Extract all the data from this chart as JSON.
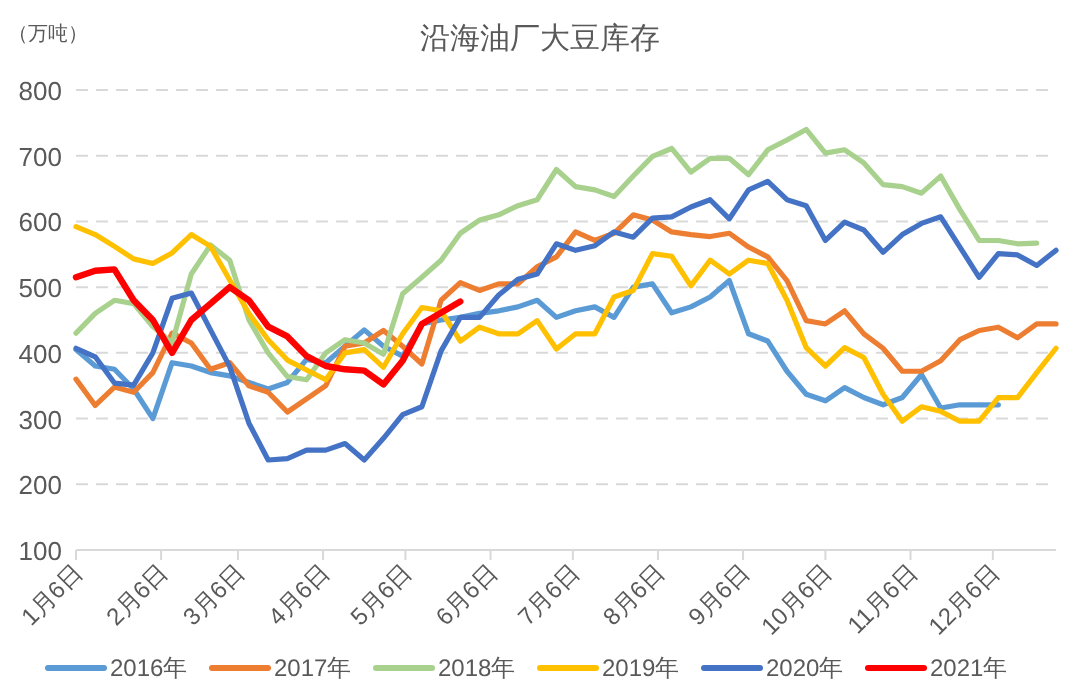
{
  "chart_data": {
    "type": "line",
    "title": "沿海油厂大豆库存",
    "ylabel": "（万吨）",
    "x": [
      "--01-06",
      "--01-13",
      "--01-20",
      "--01-27",
      "--02-03",
      "--02-10",
      "--02-17",
      "--02-24",
      "--03-03",
      "--03-10",
      "--03-17",
      "--03-24",
      "--03-31",
      "--04-07",
      "--04-14",
      "--04-21",
      "--04-28",
      "--05-05",
      "--05-12",
      "--05-19",
      "--05-26",
      "--06-02",
      "--06-09",
      "--06-16",
      "--06-23",
      "--06-30",
      "--07-07",
      "--07-14",
      "--07-21",
      "--07-28",
      "--08-04",
      "--08-11",
      "--08-18",
      "--08-25",
      "--09-01",
      "--09-08",
      "--09-15",
      "--09-22",
      "--09-29",
      "--10-06",
      "--10-13",
      "--10-20",
      "--10-27",
      "--11-03",
      "--11-10",
      "--11-17",
      "--11-24",
      "--12-01",
      "--12-08",
      "--12-15",
      "--12-22",
      "--12-29"
    ],
    "xlim": [
      "--01-06",
      "--12-29"
    ],
    "xticks": [
      {
        "value": "--01-06",
        "label": "1月6日"
      },
      {
        "value": "--02-06",
        "label": "2月6日"
      },
      {
        "value": "--03-06",
        "label": "3月6日"
      },
      {
        "value": "--04-06",
        "label": "4月6日"
      },
      {
        "value": "--05-06",
        "label": "5月6日"
      },
      {
        "value": "--06-06",
        "label": "6月6日"
      },
      {
        "value": "--07-06",
        "label": "7月6日"
      },
      {
        "value": "--08-06",
        "label": "8月6日"
      },
      {
        "value": "--09-06",
        "label": "9月6日"
      },
      {
        "value": "--10-06",
        "label": "10月6日"
      },
      {
        "value": "--11-06",
        "label": "11月6日"
      },
      {
        "value": "--12-06",
        "label": "12月6日"
      }
    ],
    "ylim": [
      100,
      800
    ],
    "yticks": [
      100,
      200,
      300,
      400,
      500,
      600,
      700,
      800
    ],
    "grid": "y",
    "legend": "bottom",
    "series": [
      {
        "name": "2016年",
        "color": "#5b9bd5",
        "values": [
          405,
          380,
          375,
          345,
          300,
          385,
          380,
          370,
          365,
          355,
          345,
          355,
          390,
          385,
          410,
          435,
          410,
          395,
          444,
          450,
          454,
          460,
          464,
          470,
          480,
          454,
          464,
          470,
          454,
          500,
          505,
          461,
          470,
          485,
          510,
          429,
          418,
          372,
          337,
          327,
          347,
          332,
          321,
          332,
          367,
          316,
          321,
          321,
          321,
          null,
          null,
          null
        ]
      },
      {
        "name": "2017年",
        "color": "#ed7d31",
        "values": [
          360,
          320,
          348,
          340,
          370,
          430,
          415,
          375,
          385,
          350,
          340,
          310,
          330,
          350,
          410,
          415,
          434,
          410,
          383,
          480,
          507,
          495,
          505,
          505,
          531,
          546,
          584,
          571,
          582,
          610,
          602,
          584,
          580,
          577,
          582,
          561,
          546,
          510,
          449,
          444,
          464,
          429,
          407,
          372,
          372,
          388,
          420,
          434,
          439,
          423,
          444,
          444
        ]
      },
      {
        "name": "2018年",
        "color": "#a9d18e",
        "values": [
          430,
          460,
          480,
          475,
          440,
          415,
          520,
          564,
          541,
          450,
          400,
          364,
          359,
          400,
          420,
          415,
          398,
          490,
          515,
          541,
          582,
          602,
          610,
          624,
          633,
          679,
          653,
          648,
          638,
          669,
          699,
          711,
          675,
          696,
          696,
          671,
          709,
          724,
          740,
          704,
          709,
          689,
          656,
          653,
          643,
          669,
          618,
          571,
          571,
          566,
          567,
          null
        ]
      },
      {
        "name": "2019年",
        "color": "#ffc000",
        "values": [
          592,
          580,
          562,
          543,
          536,
          552,
          580,
          562,
          511,
          460,
          420,
          389,
          374,
          359,
          400,
          405,
          378,
          429,
          469,
          464,
          418,
          439,
          429,
          429,
          449,
          406,
          429,
          429,
          485,
          495,
          551,
          547,
          502,
          541,
          520,
          541,
          536,
          480,
          408,
          380,
          408,
          393,
          337,
          296,
          318,
          311,
          296,
          296,
          332,
          332,
          370,
          407
        ]
      },
      {
        "name": "2020年",
        "color": "#4472c4",
        "values": [
          407,
          394,
          354,
          351,
          400,
          483,
          491,
          435,
          379,
          293,
          237,
          239,
          252,
          252,
          262,
          237,
          270,
          306,
          318,
          403,
          454,
          454,
          488,
          512,
          520,
          566,
          556,
          563,
          584,
          576,
          605,
          607,
          622,
          633,
          604,
          648,
          661,
          633,
          624,
          571,
          599,
          587,
          553,
          580,
          597,
          607,
          561,
          515,
          551,
          549,
          533,
          556
        ]
      },
      {
        "name": "2021年",
        "color": "#ff0000",
        "values": [
          515,
          525,
          527,
          480,
          450,
          400,
          450,
          475,
          500,
          480,
          440,
          425,
          395,
          380,
          375,
          373,
          352,
          388,
          444,
          461,
          478,
          null,
          null,
          null,
          null,
          null,
          null,
          null,
          null,
          null,
          null,
          null,
          null,
          null,
          null,
          null,
          null,
          null,
          null,
          null,
          null,
          null,
          null,
          null,
          null,
          null,
          null,
          null,
          null,
          null,
          null,
          null
        ]
      }
    ]
  }
}
